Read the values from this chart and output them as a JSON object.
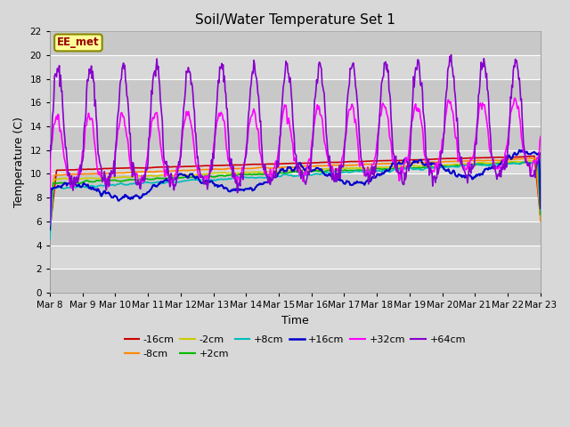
{
  "title": "Soil/Water Temperature Set 1",
  "xlabel": "Time",
  "ylabel": "Temperature (C)",
  "ylim": [
    0,
    22
  ],
  "yticks": [
    0,
    2,
    4,
    6,
    8,
    10,
    12,
    14,
    16,
    18,
    20,
    22
  ],
  "x_labels": [
    "Mar 8",
    "Mar 9",
    "Mar 10",
    "Mar 11",
    "Mar 12",
    "Mar 13",
    "Mar 14",
    "Mar 15",
    "Mar 16",
    "Mar 17",
    "Mar 18",
    "Mar 19",
    "Mar 20",
    "Mar 21",
    "Mar 22",
    "Mar 23"
  ],
  "bg_color": "#d8d8d8",
  "plot_bg_color": "#d8d8d8",
  "annotation_text": "EE_met",
  "annotation_bg": "#ffff99",
  "annotation_border": "#888800",
  "annotation_text_color": "#990000",
  "series_order": [
    "-16cm",
    "-8cm",
    "-2cm",
    "+2cm",
    "+8cm",
    "+16cm",
    "+32cm",
    "+64cm"
  ],
  "series": {
    "-16cm": {
      "color": "#cc0000",
      "lw": 1.2
    },
    "-8cm": {
      "color": "#ff8800",
      "lw": 1.2
    },
    "-2cm": {
      "color": "#cccc00",
      "lw": 1.2
    },
    "+2cm": {
      "color": "#00bb00",
      "lw": 1.2
    },
    "+8cm": {
      "color": "#00bbbb",
      "lw": 1.2
    },
    "+16cm": {
      "color": "#0000cc",
      "lw": 1.5
    },
    "+32cm": {
      "color": "#ff00ff",
      "lw": 1.2
    },
    "+64cm": {
      "color": "#8800cc",
      "lw": 1.2
    }
  },
  "legend_order": [
    "-16cm",
    "-8cm",
    "-2cm",
    "+2cm",
    "+8cm",
    "+16cm",
    "+32cm",
    "+64cm"
  ],
  "n_days": 15,
  "n_per_day": 48
}
